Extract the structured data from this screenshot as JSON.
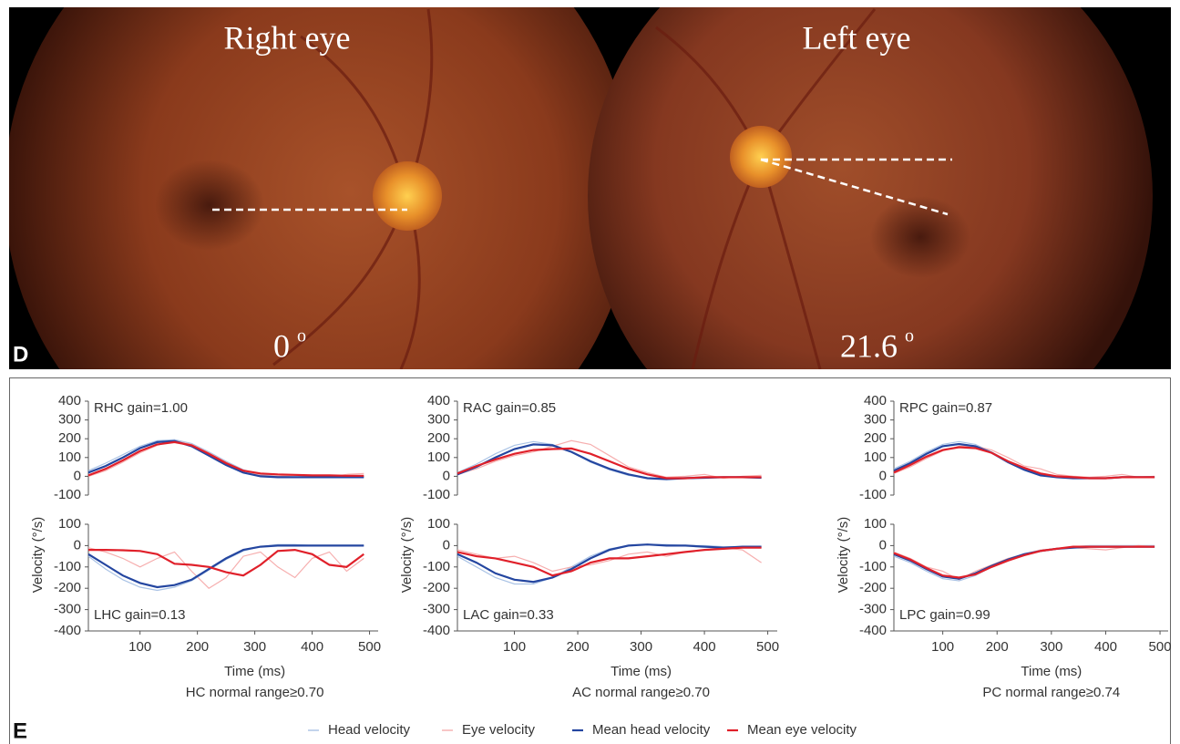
{
  "panels": {
    "d_label": "D",
    "e_label": "E"
  },
  "photos": [
    {
      "title": "Right eye",
      "angle": "0"
    },
    {
      "title": "Left eye",
      "angle": "21.6"
    }
  ],
  "degree_mark": "o",
  "chart_data": [
    {
      "type": "line",
      "annotation": "RHC gain=1.00",
      "x": [
        10,
        40,
        70,
        100,
        130,
        160,
        190,
        220,
        250,
        280,
        310,
        340,
        370,
        400,
        430,
        460,
        490
      ],
      "xlim": [
        10,
        515
      ],
      "ylim": [
        -100,
        400
      ],
      "yticks": [
        -100,
        0,
        100,
        200,
        300,
        400
      ],
      "series": [
        {
          "name": "Head velocity",
          "color": "#9bb8e0",
          "values": [
            30,
            70,
            115,
            160,
            190,
            195,
            175,
            130,
            80,
            35,
            10,
            0,
            -5,
            -5,
            -5,
            -5,
            -5
          ]
        },
        {
          "name": "Eye velocity",
          "color": "#f4a0a0",
          "values": [
            0,
            30,
            75,
            125,
            165,
            190,
            170,
            125,
            75,
            30,
            5,
            0,
            5,
            0,
            -5,
            10,
            15
          ]
        },
        {
          "name": "Mean head velocity",
          "color": "#2446a0",
          "values": [
            20,
            55,
            100,
            150,
            182,
            188,
            160,
            110,
            60,
            20,
            0,
            -5,
            -5,
            -5,
            -5,
            -5,
            -5
          ]
        },
        {
          "name": "Mean eye velocity",
          "color": "#e0202a",
          "values": [
            5,
            40,
            85,
            135,
            170,
            182,
            165,
            120,
            70,
            30,
            15,
            10,
            8,
            5,
            5,
            3,
            3
          ]
        }
      ]
    },
    {
      "type": "line",
      "annotation": "LHC gain=0.13",
      "x": [
        10,
        40,
        70,
        100,
        130,
        160,
        190,
        220,
        250,
        280,
        310,
        340,
        370,
        400,
        430,
        460,
        490
      ],
      "xlim": [
        10,
        515
      ],
      "ylim": [
        -400,
        100
      ],
      "yticks": [
        -400,
        -300,
        -200,
        -100,
        0,
        100
      ],
      "xticks": [
        100,
        200,
        300,
        400,
        500
      ],
      "xlabel": "Time (ms)",
      "ylabel": "Velocity (°/s)",
      "caption": "HC normal range≥0.70",
      "series": [
        {
          "name": "Head velocity",
          "color": "#9bb8e0",
          "values": [
            -50,
            -110,
            -160,
            -195,
            -210,
            -195,
            -165,
            -115,
            -65,
            -25,
            -5,
            5,
            5,
            0,
            0,
            0,
            0
          ]
        },
        {
          "name": "Eye velocity",
          "color": "#f4a0a0",
          "values": [
            -10,
            -30,
            -60,
            -100,
            -60,
            -30,
            -120,
            -200,
            -150,
            -50,
            -30,
            -100,
            -150,
            -60,
            -30,
            -120,
            -60
          ]
        },
        {
          "name": "Mean head velocity",
          "color": "#2446a0",
          "values": [
            -40,
            -90,
            -140,
            -175,
            -195,
            -185,
            -160,
            -110,
            -60,
            -20,
            -5,
            0,
            0,
            0,
            0,
            0,
            0
          ]
        },
        {
          "name": "Mean eye velocity",
          "color": "#e0202a",
          "values": [
            -20,
            -20,
            -22,
            -25,
            -40,
            -85,
            -90,
            -100,
            -125,
            -140,
            -90,
            -25,
            -20,
            -40,
            -90,
            -100,
            -40
          ]
        }
      ]
    },
    {
      "type": "line",
      "annotation": "RAC gain=0.85",
      "x": [
        10,
        40,
        70,
        100,
        130,
        160,
        190,
        220,
        250,
        280,
        310,
        340,
        370,
        400,
        430,
        460,
        490
      ],
      "xlim": [
        10,
        515
      ],
      "ylim": [
        -100,
        400
      ],
      "yticks": [
        -100,
        0,
        100,
        200,
        300,
        400
      ],
      "series": [
        {
          "name": "Head velocity",
          "color": "#9bb8e0",
          "values": [
            20,
            65,
            120,
            165,
            185,
            170,
            130,
            75,
            35,
            5,
            -10,
            -10,
            -5,
            -5,
            -5,
            -5,
            -5
          ]
        },
        {
          "name": "Eye velocity",
          "color": "#f4a0a0",
          "values": [
            10,
            40,
            80,
            110,
            130,
            160,
            190,
            170,
            110,
            50,
            20,
            -5,
            0,
            10,
            -10,
            0,
            5
          ]
        },
        {
          "name": "Mean head velocity",
          "color": "#2446a0",
          "values": [
            10,
            50,
            100,
            145,
            170,
            165,
            130,
            80,
            40,
            10,
            -10,
            -15,
            -10,
            -8,
            -5,
            -5,
            -8
          ]
        },
        {
          "name": "Mean eye velocity",
          "color": "#e0202a",
          "values": [
            15,
            55,
            90,
            120,
            140,
            145,
            148,
            120,
            80,
            40,
            10,
            -10,
            -10,
            -5,
            -5,
            -5,
            -5
          ]
        }
      ]
    },
    {
      "type": "line",
      "annotation": "LAC gain=0.33",
      "x": [
        10,
        40,
        70,
        100,
        130,
        160,
        190,
        220,
        250,
        280,
        310,
        340,
        370,
        400,
        430,
        460,
        490
      ],
      "xlim": [
        10,
        515
      ],
      "ylim": [
        -400,
        100
      ],
      "yticks": [
        -400,
        -300,
        -200,
        -100,
        0,
        100
      ],
      "xticks": [
        100,
        200,
        300,
        400,
        500
      ],
      "xlabel": "Time (ms)",
      "ylabel": "Velocity (°/s)",
      "caption": "AC normal range≥0.70",
      "series": [
        {
          "name": "Head velocity",
          "color": "#9bb8e0",
          "values": [
            -50,
            -100,
            -150,
            -180,
            -180,
            -150,
            -100,
            -50,
            -15,
            0,
            5,
            5,
            0,
            0,
            -5,
            -5,
            -5
          ]
        },
        {
          "name": "Eye velocity",
          "color": "#f4a0a0",
          "values": [
            -20,
            -40,
            -60,
            -50,
            -80,
            -120,
            -100,
            -90,
            -70,
            -40,
            -30,
            -50,
            -30,
            -20,
            -10,
            -20,
            -80
          ]
        },
        {
          "name": "Mean head velocity",
          "color": "#2446a0",
          "values": [
            -40,
            -80,
            -130,
            -160,
            -170,
            -150,
            -110,
            -60,
            -20,
            0,
            5,
            0,
            0,
            -5,
            -10,
            -5,
            -5
          ]
        },
        {
          "name": "Mean eye velocity",
          "color": "#e0202a",
          "values": [
            -30,
            -50,
            -60,
            -80,
            -100,
            -140,
            -120,
            -80,
            -60,
            -60,
            -50,
            -40,
            -30,
            -20,
            -15,
            -10,
            -10
          ]
        }
      ]
    },
    {
      "type": "line",
      "annotation": "RPC gain=0.87",
      "x": [
        10,
        40,
        70,
        100,
        130,
        160,
        190,
        220,
        250,
        280,
        310,
        340,
        370,
        400,
        430,
        460,
        490
      ],
      "xlim": [
        10,
        515
      ],
      "ylim": [
        -100,
        400
      ],
      "yticks": [
        -100,
        0,
        100,
        200,
        300,
        400
      ],
      "series": [
        {
          "name": "Head velocity",
          "color": "#9bb8e0",
          "values": [
            40,
            80,
            130,
            170,
            185,
            170,
            130,
            80,
            35,
            5,
            -5,
            -10,
            -10,
            -10,
            -5,
            -5,
            -5
          ]
        },
        {
          "name": "Eye velocity",
          "color": "#f4a0a0",
          "values": [
            15,
            50,
            95,
            135,
            160,
            160,
            140,
            100,
            55,
            40,
            10,
            0,
            -5,
            0,
            10,
            -5,
            0
          ]
        },
        {
          "name": "Mean head velocity",
          "color": "#2446a0",
          "values": [
            30,
            70,
            120,
            160,
            172,
            160,
            125,
            75,
            35,
            5,
            -5,
            -10,
            -10,
            -10,
            -5,
            -5,
            -5
          ]
        },
        {
          "name": "Mean eye velocity",
          "color": "#e0202a",
          "values": [
            20,
            60,
            105,
            140,
            155,
            150,
            125,
            80,
            45,
            15,
            0,
            -5,
            -10,
            -10,
            -5,
            -5,
            -5
          ]
        }
      ]
    },
    {
      "type": "line",
      "annotation": "LPC gain=0.99",
      "x": [
        10,
        40,
        70,
        100,
        130,
        160,
        190,
        220,
        250,
        280,
        310,
        340,
        370,
        400,
        430,
        460,
        490
      ],
      "xlim": [
        10,
        515
      ],
      "ylim": [
        -400,
        100
      ],
      "yticks": [
        -400,
        -300,
        -200,
        -100,
        0,
        100
      ],
      "xticks": [
        100,
        200,
        300,
        400,
        500
      ],
      "xlabel": "Time (ms)",
      "ylabel": "Velocity (°/s)",
      "caption": "PC normal range≥0.74",
      "series": [
        {
          "name": "Head velocity",
          "color": "#9bb8e0",
          "values": [
            -50,
            -80,
            -120,
            -155,
            -165,
            -140,
            -100,
            -65,
            -40,
            -25,
            -15,
            -5,
            0,
            0,
            0,
            0,
            0
          ]
        },
        {
          "name": "Eye velocity",
          "color": "#f4a0a0",
          "values": [
            -30,
            -60,
            -100,
            -120,
            -160,
            -120,
            -90,
            -60,
            -40,
            -20,
            -15,
            -10,
            -15,
            -20,
            -10,
            0,
            -5
          ]
        },
        {
          "name": "Mean head velocity",
          "color": "#2446a0",
          "values": [
            -40,
            -70,
            -110,
            -145,
            -155,
            -130,
            -95,
            -65,
            -40,
            -25,
            -15,
            -10,
            -5,
            -5,
            -5,
            -5,
            -5
          ]
        },
        {
          "name": "Mean eye velocity",
          "color": "#e0202a",
          "values": [
            -35,
            -65,
            -105,
            -140,
            -150,
            -135,
            -100,
            -70,
            -45,
            -25,
            -15,
            -5,
            -5,
            -5,
            -5,
            -5,
            -5
          ]
        }
      ]
    }
  ]
}
